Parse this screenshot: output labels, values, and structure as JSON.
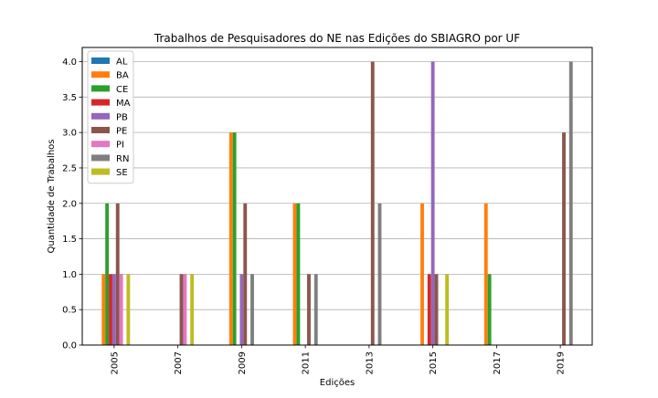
{
  "chart_data": {
    "type": "bar",
    "title": "Trabalhos de Pesquisadores do NE nas Edições do SBIAGRO por UF",
    "xlabel": "Edições",
    "ylabel": "Quantidade de Trabalhos",
    "categories": [
      "2005",
      "2007",
      "2009",
      "2011",
      "2013",
      "2015",
      "2017",
      "2019"
    ],
    "ylim": [
      0,
      4.2
    ],
    "yticks": [
      "0.0",
      "0.5",
      "1.0",
      "1.5",
      "2.0",
      "2.5",
      "3.0",
      "3.5",
      "4.0"
    ],
    "grid": "horizontal",
    "legend_position": "top-left",
    "series": [
      {
        "name": "AL",
        "color": "#1f77b4",
        "values": [
          0,
          0,
          0,
          0,
          0,
          0,
          0,
          0
        ]
      },
      {
        "name": "BA",
        "color": "#ff7f0e",
        "values": [
          1,
          0,
          3,
          2,
          0,
          2,
          2,
          0
        ]
      },
      {
        "name": "CE",
        "color": "#2ca02c",
        "values": [
          2,
          0,
          3,
          2,
          0,
          0,
          1,
          0
        ]
      },
      {
        "name": "MA",
        "color": "#d62728",
        "values": [
          1,
          0,
          0,
          0,
          0,
          1,
          0,
          0
        ]
      },
      {
        "name": "PB",
        "color": "#9467bd",
        "values": [
          1,
          0,
          1,
          0,
          0,
          4,
          0,
          0
        ]
      },
      {
        "name": "PE",
        "color": "#8c564b",
        "values": [
          2,
          1,
          2,
          1,
          4,
          1,
          0,
          3
        ]
      },
      {
        "name": "PI",
        "color": "#e377c2",
        "values": [
          1,
          1,
          0,
          0,
          0,
          0,
          0,
          0
        ]
      },
      {
        "name": "RN",
        "color": "#7f7f7f",
        "values": [
          0,
          0,
          1,
          1,
          2,
          0,
          0,
          4
        ]
      },
      {
        "name": "SE",
        "color": "#bcbd22",
        "values": [
          1,
          1,
          0,
          0,
          0,
          1,
          0,
          0
        ]
      }
    ]
  }
}
